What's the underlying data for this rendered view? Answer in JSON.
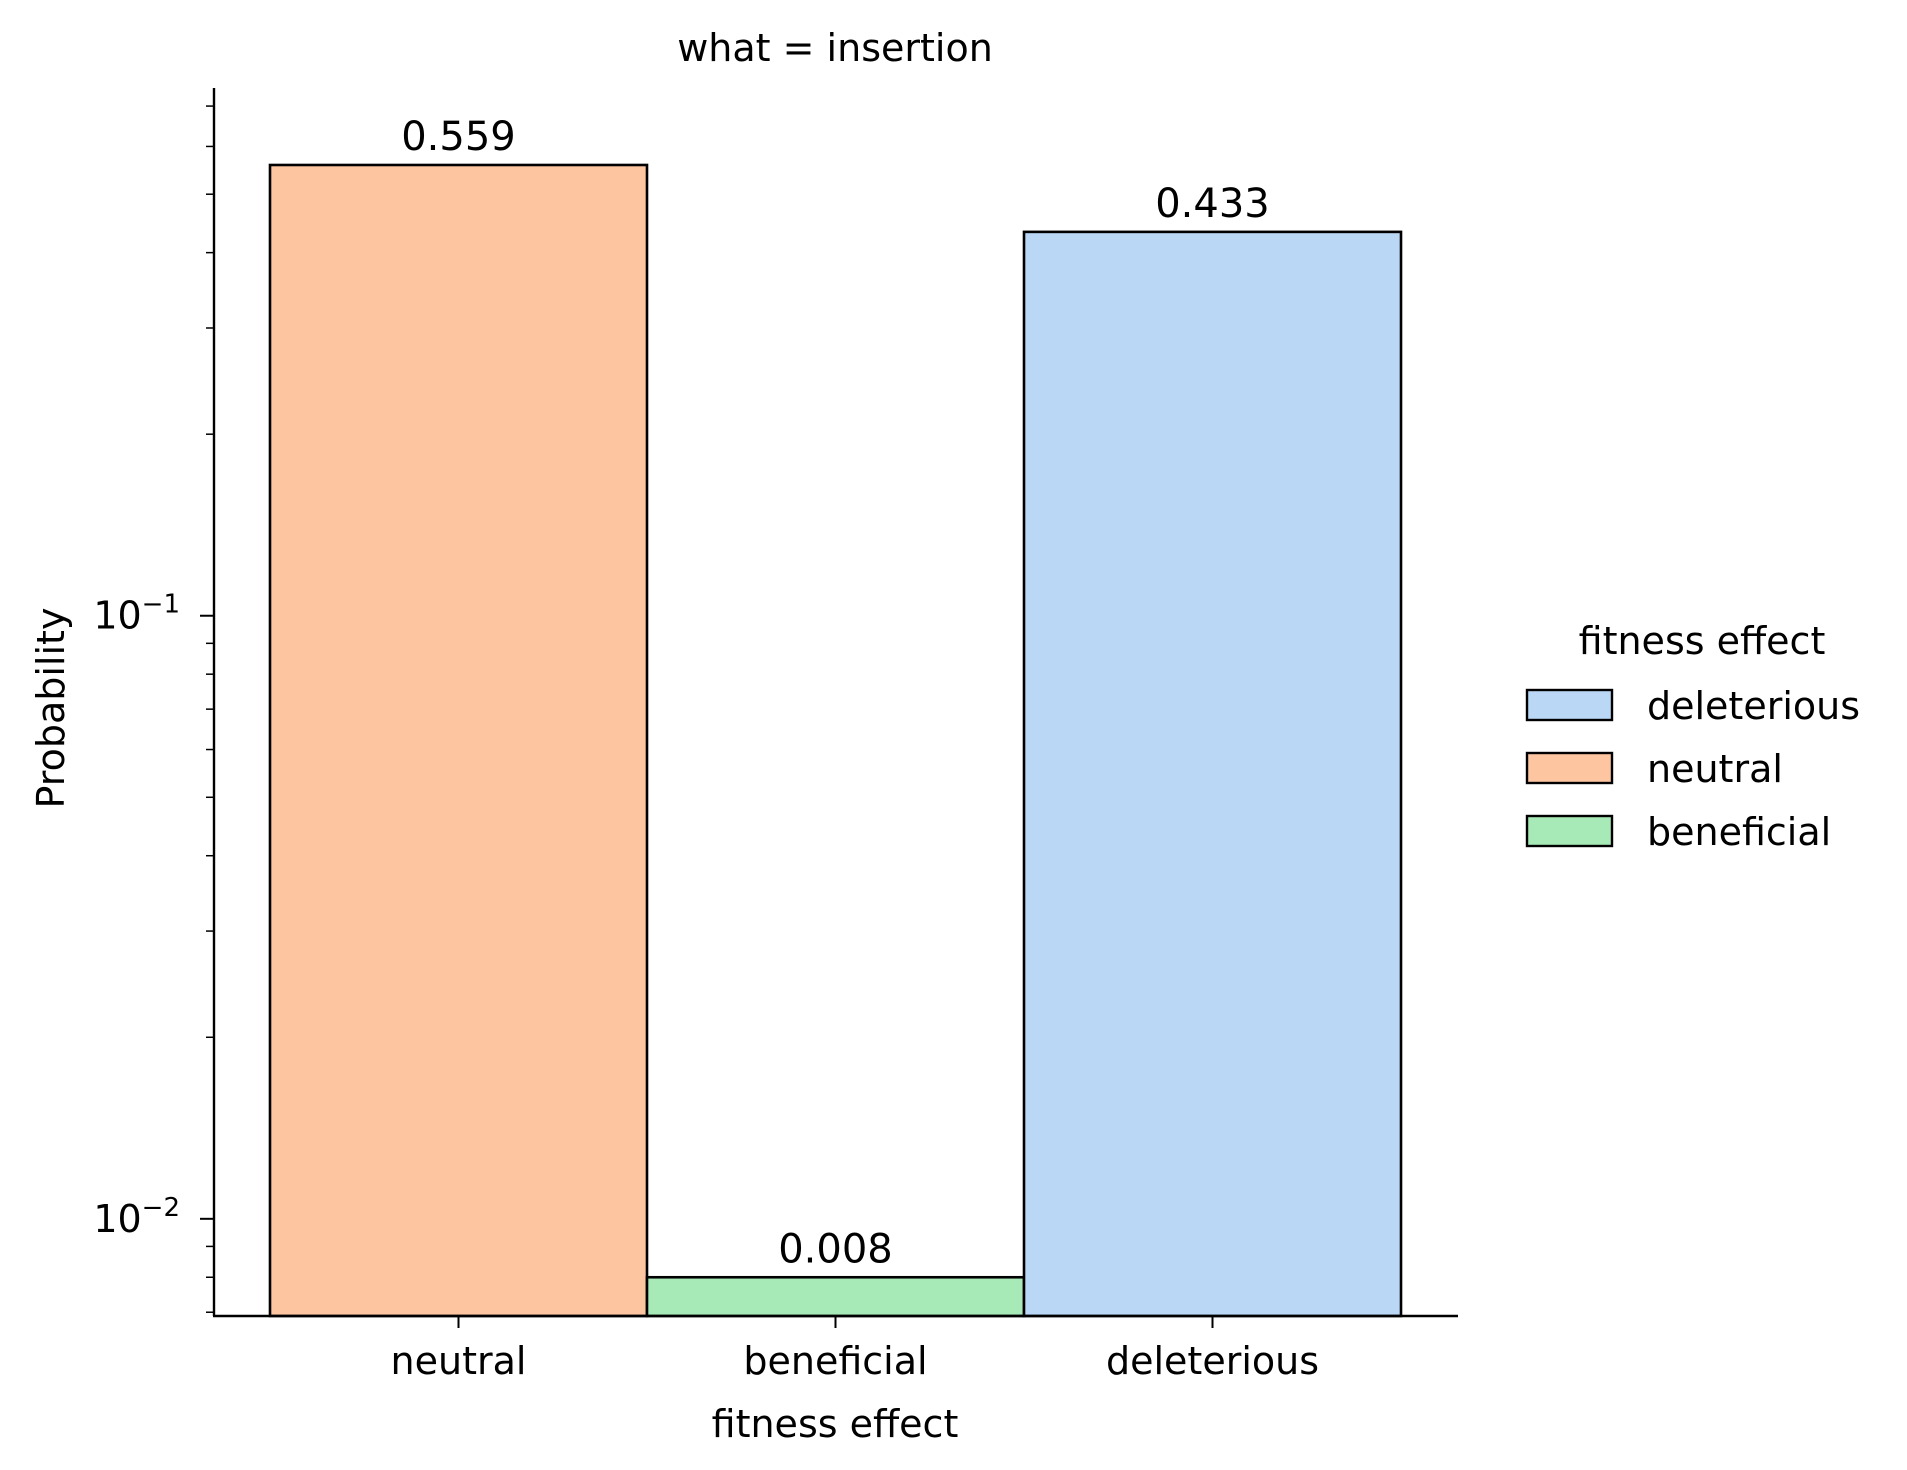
{
  "chart_data": {
    "type": "bar",
    "title": "what = insertion",
    "xlabel": "fitness effect",
    "ylabel": "Probability",
    "yscale": "log",
    "ylim": [
      0.0069,
      0.75
    ],
    "grid": false,
    "categories": [
      "neutral",
      "beneficial",
      "deleterious"
    ],
    "values": [
      0.559,
      0.008,
      0.433
    ],
    "data_labels": [
      "0.559",
      "0.008",
      "0.433"
    ],
    "bar_colors": [
      "#fdc6a0",
      "#a8eab7",
      "#bad8f6"
    ],
    "y_ticks": [
      {
        "value": 0.01,
        "base": "10",
        "exp": "−2"
      },
      {
        "value": 0.1,
        "base": "10",
        "exp": "−1"
      }
    ],
    "legend": {
      "title": "fitness effect",
      "placement": "right",
      "entries": [
        {
          "label": "deleterious",
          "color": "#bad8f6"
        },
        {
          "label": "neutral",
          "color": "#fdc6a0"
        },
        {
          "label": "beneficial",
          "color": "#a8eab7"
        }
      ]
    }
  }
}
